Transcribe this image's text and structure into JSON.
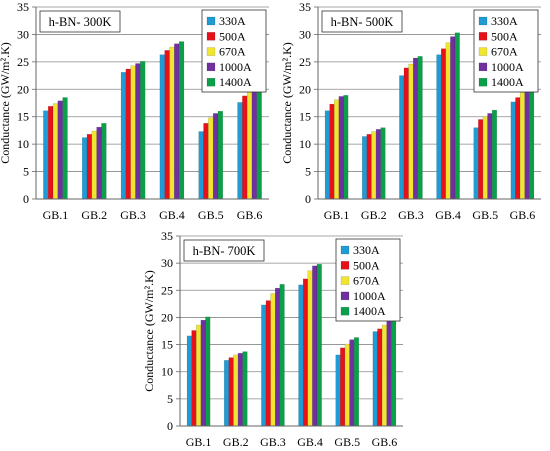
{
  "chart_data": [
    {
      "type": "bar",
      "title": "h-BN- 300K",
      "ylabel": "Conductance (GW/m².K)",
      "ylim": [
        0,
        35
      ],
      "yticks": [
        0,
        5,
        10,
        15,
        20,
        25,
        30,
        35
      ],
      "grid": true,
      "legend_position": "top-right",
      "categories": [
        "GB.1",
        "GB.2",
        "GB.3",
        "GB.4",
        "GB.5",
        "GB.6"
      ],
      "series": [
        {
          "name": "330A",
          "color": "#1f9bd6",
          "values": [
            16.1,
            11.2,
            23.1,
            26.3,
            12.3,
            17.6
          ]
        },
        {
          "name": "500A",
          "color": "#e8111a",
          "values": [
            16.9,
            11.8,
            23.7,
            27.1,
            13.8,
            18.8
          ]
        },
        {
          "name": "670A",
          "color": "#f0e632",
          "values": [
            17.4,
            12.4,
            24.3,
            27.7,
            14.8,
            19.5
          ]
        },
        {
          "name": "1000A",
          "color": "#7030a0",
          "values": [
            17.9,
            13.1,
            24.7,
            28.3,
            15.6,
            19.9
          ]
        },
        {
          "name": "1400A",
          "color": "#0aa04a",
          "values": [
            18.5,
            13.8,
            25.1,
            28.7,
            16.0,
            20.1
          ]
        }
      ]
    },
    {
      "type": "bar",
      "title": "h-BN- 500K",
      "ylabel": "Conductance (GW/m².K)",
      "ylim": [
        0,
        35
      ],
      "yticks": [
        0,
        5,
        10,
        15,
        20,
        25,
        30,
        35
      ],
      "grid": true,
      "legend_position": "top-right",
      "categories": [
        "GB.1",
        "GB.2",
        "GB.3",
        "GB.4",
        "GB.5",
        "GB.6"
      ],
      "series": [
        {
          "name": "330A",
          "color": "#1f9bd6",
          "values": [
            16.1,
            11.4,
            22.5,
            26.3,
            13.0,
            17.7
          ]
        },
        {
          "name": "500A",
          "color": "#e8111a",
          "values": [
            17.3,
            11.8,
            23.9,
            27.4,
            14.5,
            18.5
          ]
        },
        {
          "name": "670A",
          "color": "#f0e632",
          "values": [
            18.1,
            12.3,
            24.6,
            28.5,
            15.1,
            19.4
          ]
        },
        {
          "name": "1000A",
          "color": "#7030a0",
          "values": [
            18.7,
            12.7,
            25.7,
            29.6,
            15.6,
            20.0
          ]
        },
        {
          "name": "1400A",
          "color": "#0aa04a",
          "values": [
            18.9,
            13.0,
            26.0,
            30.3,
            16.2,
            20.6
          ]
        }
      ]
    },
    {
      "type": "bar",
      "title": "h-BN- 700K",
      "ylabel": "Conductance (GW/m².K)",
      "ylim": [
        0,
        35
      ],
      "yticks": [
        0,
        5,
        10,
        15,
        20,
        25,
        30,
        35
      ],
      "grid": true,
      "legend_position": "top-right",
      "categories": [
        "GB.1",
        "GB.2",
        "GB.3",
        "GB.4",
        "GB.5",
        "GB.6"
      ],
      "series": [
        {
          "name": "330A",
          "color": "#1f9bd6",
          "values": [
            16.6,
            12.1,
            22.3,
            26.0,
            13.1,
            17.4
          ]
        },
        {
          "name": "500A",
          "color": "#e8111a",
          "values": [
            17.6,
            12.6,
            23.1,
            27.1,
            14.4,
            17.9
          ]
        },
        {
          "name": "670A",
          "color": "#f0e632",
          "values": [
            18.6,
            13.1,
            24.4,
            28.6,
            15.1,
            18.6
          ]
        },
        {
          "name": "1000A",
          "color": "#7030a0",
          "values": [
            19.5,
            13.4,
            25.4,
            29.5,
            15.9,
            19.5
          ]
        },
        {
          "name": "1400A",
          "color": "#0aa04a",
          "values": [
            20.1,
            13.7,
            26.1,
            29.8,
            16.3,
            20.2
          ]
        }
      ]
    }
  ]
}
